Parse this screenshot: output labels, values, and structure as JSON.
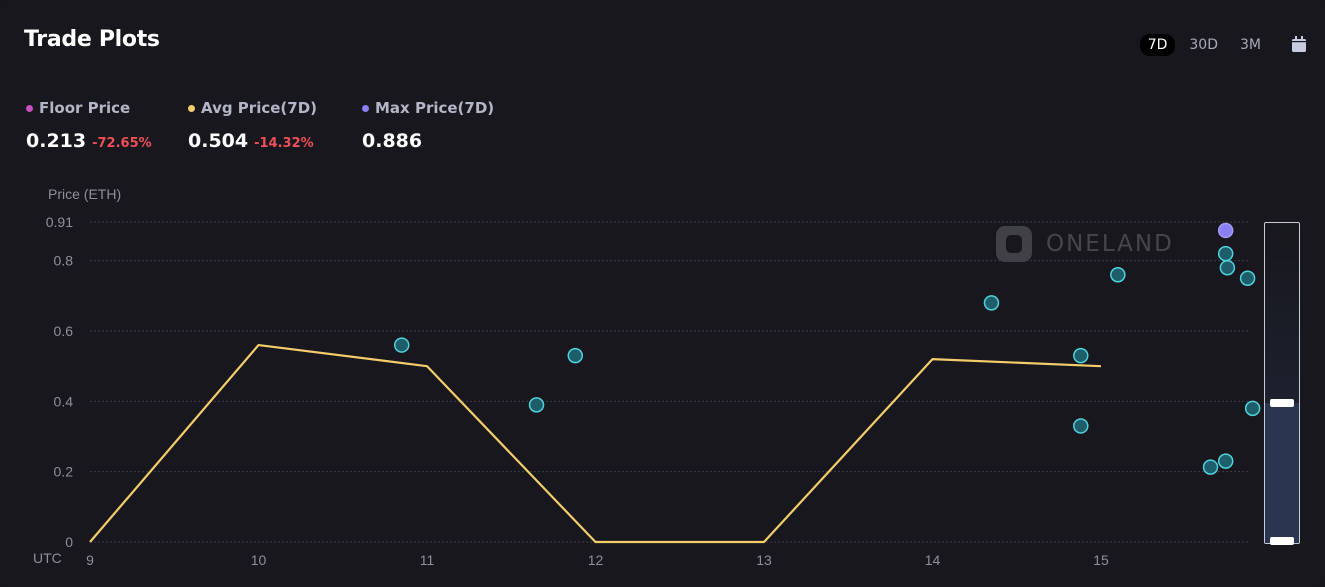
{
  "header": {
    "title": "Trade Plots"
  },
  "range_tabs": [
    {
      "label": "7D",
      "active": true
    },
    {
      "label": "30D",
      "active": false
    },
    {
      "label": "3M",
      "active": false
    }
  ],
  "icons": {
    "calendar": "calendar-icon"
  },
  "stats": [
    {
      "label": "Floor Price",
      "value": "0.213",
      "change": "-72.65%",
      "dot_color": "#c851c4"
    },
    {
      "label": "Avg Price(7D)",
      "value": "0.504",
      "change": "-14.32%",
      "dot_color": "#f3cd6b"
    },
    {
      "label": "Max Price(7D)",
      "value": "0.886",
      "change": "",
      "dot_color": "#8a7ff0"
    }
  ],
  "watermark": "ONELAND",
  "brush": {
    "range_start": 0.0,
    "range_end": 0.44
  },
  "chart_data": {
    "type": "scatter",
    "ylabel": "Price (ETH)",
    "xlabel": "UTC",
    "x_ticks": [
      "9",
      "10",
      "11",
      "12",
      "13",
      "14",
      "15"
    ],
    "y_ticks": [
      "0",
      "0.2",
      "0.4",
      "0.6",
      "0.8",
      "0.91"
    ],
    "ylim": [
      0,
      0.91
    ],
    "xlim": [
      9,
      15.9
    ],
    "grid": true,
    "colors": {
      "line": "#f3cd6b",
      "point": "#39b8c4",
      "point_max": "#8a7ff0"
    },
    "line": {
      "name": "Avg Price(7D)",
      "x": [
        9,
        10,
        11,
        12,
        13,
        14,
        15
      ],
      "y": [
        0,
        0.56,
        0.5,
        0,
        0,
        0.52,
        0.5
      ]
    },
    "points": [
      {
        "x": 10.85,
        "y": 0.56
      },
      {
        "x": 11.65,
        "y": 0.39
      },
      {
        "x": 11.88,
        "y": 0.53
      },
      {
        "x": 14.35,
        "y": 0.68
      },
      {
        "x": 14.88,
        "y": 0.53
      },
      {
        "x": 14.88,
        "y": 0.33
      },
      {
        "x": 15.1,
        "y": 0.76
      },
      {
        "x": 15.65,
        "y": 0.213
      },
      {
        "x": 15.74,
        "y": 0.23
      },
      {
        "x": 15.74,
        "y": 0.82
      },
      {
        "x": 15.75,
        "y": 0.78
      },
      {
        "x": 15.74,
        "y": 0.886,
        "max": true
      },
      {
        "x": 15.87,
        "y": 0.75
      },
      {
        "x": 15.9,
        "y": 0.38
      }
    ]
  }
}
